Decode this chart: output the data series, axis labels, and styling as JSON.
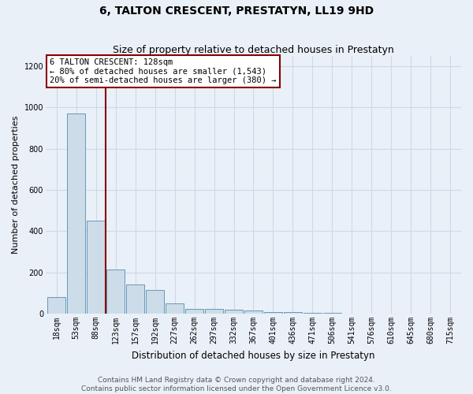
{
  "title": "6, TALTON CRESCENT, PRESTATYN, LL19 9HD",
  "subtitle": "Size of property relative to detached houses in Prestatyn",
  "xlabel": "Distribution of detached houses by size in Prestatyn",
  "ylabel": "Number of detached properties",
  "bin_labels": [
    "18sqm",
    "53sqm",
    "88sqm",
    "123sqm",
    "157sqm",
    "192sqm",
    "227sqm",
    "262sqm",
    "297sqm",
    "332sqm",
    "367sqm",
    "401sqm",
    "436sqm",
    "471sqm",
    "506sqm",
    "541sqm",
    "576sqm",
    "610sqm",
    "645sqm",
    "680sqm",
    "715sqm"
  ],
  "bar_heights": [
    80,
    970,
    450,
    215,
    140,
    115,
    50,
    22,
    22,
    18,
    15,
    10,
    10,
    5,
    5,
    2,
    2,
    2,
    2,
    2,
    2
  ],
  "bar_color": "#ccdce8",
  "bar_edge_color": "#6699bb",
  "background_color": "#eaf0f8",
  "grid_color": "#d0d8e8",
  "vline_x": 2.5,
  "vline_color": "#880000",
  "annotation_text": "6 TALTON CRESCENT: 128sqm\n← 80% of detached houses are smaller (1,543)\n20% of semi-detached houses are larger (380) →",
  "annotation_box_color": "#ffffff",
  "annotation_box_edge": "#880000",
  "ylim": [
    0,
    1250
  ],
  "yticks": [
    0,
    200,
    400,
    600,
    800,
    1000,
    1200
  ],
  "footer": "Contains HM Land Registry data © Crown copyright and database right 2024.\nContains public sector information licensed under the Open Government Licence v3.0.",
  "title_fontsize": 10,
  "subtitle_fontsize": 9,
  "xlabel_fontsize": 8.5,
  "ylabel_fontsize": 8,
  "tick_fontsize": 7,
  "footer_fontsize": 6.5,
  "annot_fontsize": 7.5
}
